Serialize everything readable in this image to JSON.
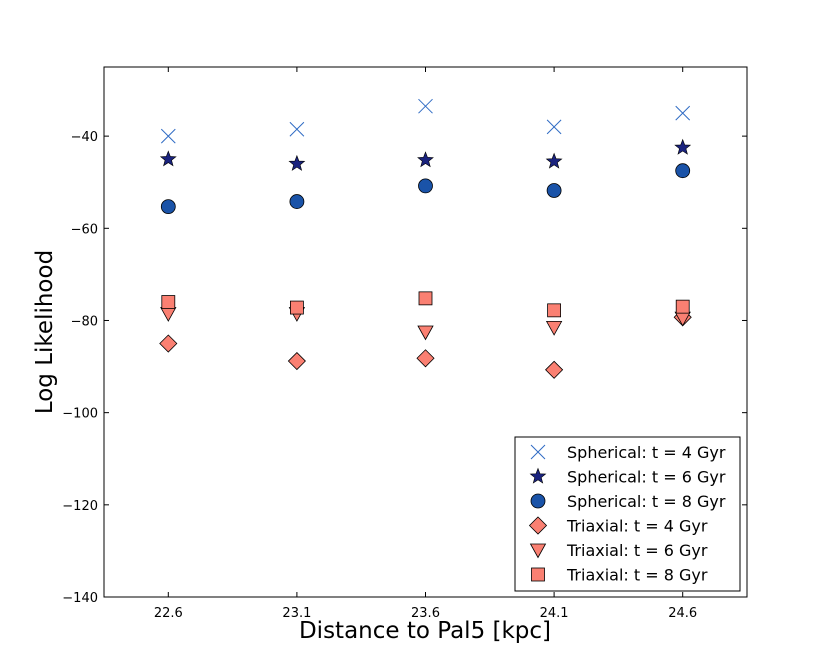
{
  "chart_data": {
    "type": "scatter",
    "title": "",
    "xlabel": "Distance to Pal5 [kpc]",
    "ylabel": "Log Likelihood",
    "x": [
      22.6,
      23.1,
      23.6,
      24.1,
      24.6
    ],
    "x_tick_labels": [
      "22.6",
      "23.1",
      "23.6",
      "24.1",
      "24.6"
    ],
    "xlim": [
      22.35,
      24.85
    ],
    "ylim": [
      -140,
      -25
    ],
    "y_ticks": [
      -40,
      -60,
      -80,
      -100,
      -120,
      -140
    ],
    "y_tick_labels": [
      "−40",
      "−60",
      "−80",
      "−100",
      "−120",
      "−140"
    ],
    "grid": false,
    "legend_position": "bottom-right",
    "series": [
      {
        "name": "Spherical: t = 4 Gyr",
        "marker": "x",
        "color": "#2f6bc4",
        "values": [
          -40,
          -38.5,
          -33.5,
          -38,
          -35
        ]
      },
      {
        "name": "Spherical: t = 6 Gyr",
        "marker": "star",
        "color": "#1a237e",
        "values": [
          -45,
          -46,
          -45.2,
          -45.5,
          -42.5
        ]
      },
      {
        "name": "Spherical: t = 8 Gyr",
        "marker": "circle",
        "color": "#1a53a8",
        "values": [
          -55.3,
          -54.2,
          -50.8,
          -51.8,
          -47.5
        ]
      },
      {
        "name": "Triaxial: t = 4 Gyr",
        "marker": "diamond",
        "color": "#fa8072",
        "values": [
          -85,
          -88.8,
          -88.2,
          -90.7,
          -79.3
        ]
      },
      {
        "name": "Triaxial: t = 6 Gyr",
        "marker": "triangle-down",
        "color": "#fa8072",
        "values": [
          -78.5,
          -78.5,
          -82.5,
          -81.5,
          -79.5
        ]
      },
      {
        "name": "Triaxial: t = 8 Gyr",
        "marker": "square",
        "color": "#fa8072",
        "values": [
          -76,
          -77.2,
          -75.2,
          -77.8,
          -77
        ]
      }
    ]
  }
}
